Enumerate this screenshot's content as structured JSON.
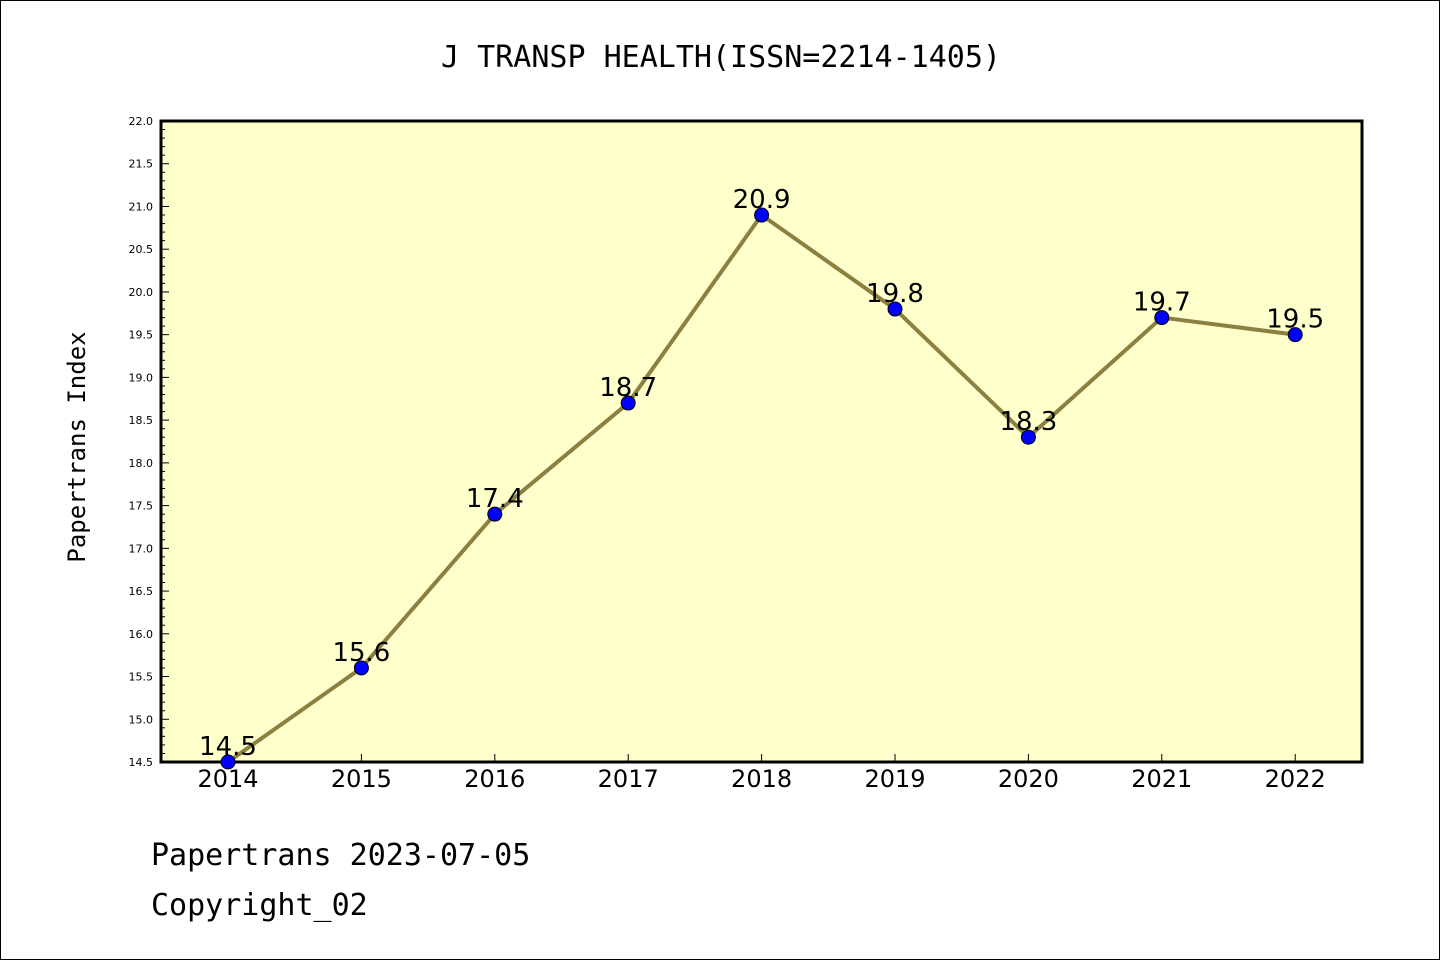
{
  "chart_data": {
    "type": "line",
    "title": "J TRANSP HEALTH(ISSN=2214-1405)",
    "ylabel": "Papertrans Index",
    "xlabel": "",
    "categories": [
      "2014",
      "2015",
      "2016",
      "2017",
      "2018",
      "2019",
      "2020",
      "2021",
      "2022"
    ],
    "values": [
      14.5,
      15.6,
      17.4,
      18.7,
      20.9,
      19.8,
      18.3,
      19.7,
      19.5
    ],
    "data_labels": [
      "14.5",
      "15.6",
      "17.4",
      "18.7",
      "20.9",
      "19.8",
      "18.3",
      "19.7",
      "19.5"
    ],
    "ylim": [
      14.5,
      22.0
    ],
    "yticks": [
      "14.5",
      "15.0",
      "15.5",
      "16.0",
      "16.5",
      "17.0",
      "17.5",
      "18.0",
      "18.5",
      "19.0",
      "19.5",
      "20.0",
      "20.5",
      "21.0",
      "21.5",
      "22.0"
    ],
    "grid": false,
    "colors": {
      "plot_background": "#ffffcc",
      "line": "#8b8040",
      "marker": "#0000ff"
    }
  },
  "footer": {
    "line1": "Papertrans 2023-07-05",
    "line2": "Copyright_02"
  }
}
